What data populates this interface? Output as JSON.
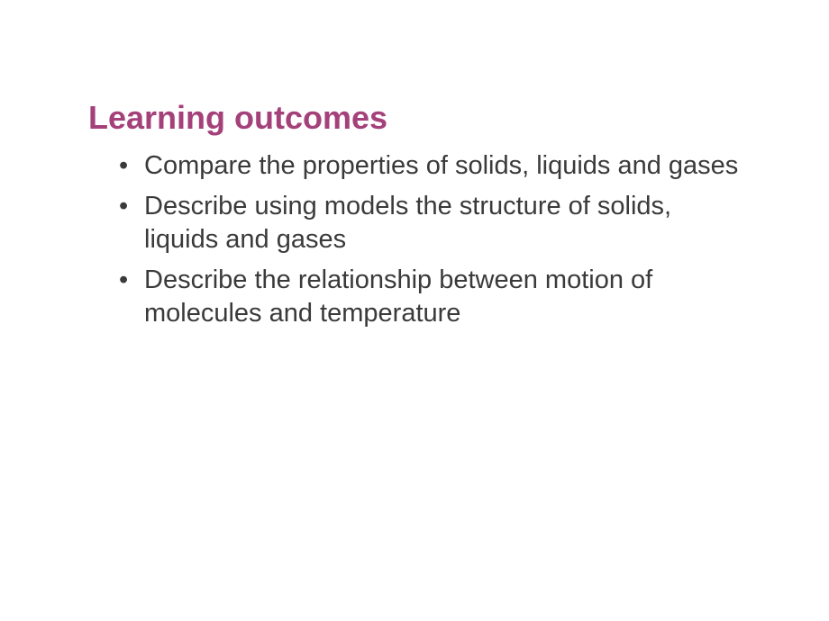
{
  "slide": {
    "title": "Learning outcomes",
    "title_color": "#a4407a",
    "title_fontsize": 36,
    "body_color": "#3a3a3a",
    "body_fontsize": 29,
    "background_color": "#ffffff",
    "bullets": [
      "Compare the properties of solids, liquids and gases",
      "Describe using models the structure of solids, liquids and gases",
      "Describe the relationship between motion of molecules and temperature"
    ]
  }
}
